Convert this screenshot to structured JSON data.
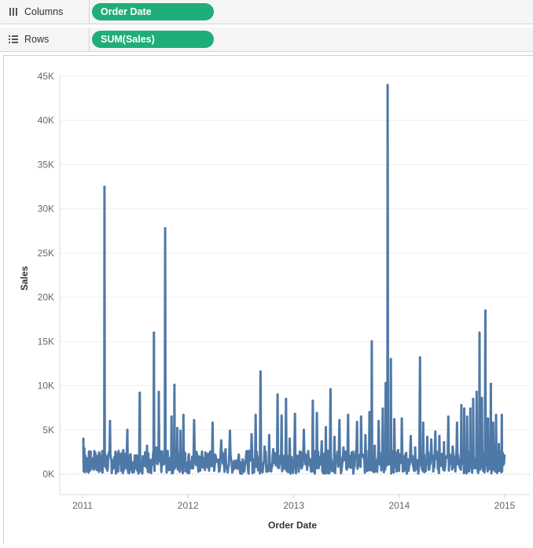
{
  "shelves": {
    "columns": {
      "label": "Columns",
      "pill": "Order Date",
      "icon": "columns-icon"
    },
    "rows": {
      "label": "Rows",
      "pill": "SUM(Sales)",
      "icon": "rows-list-icon"
    }
  },
  "colors": {
    "pill": "#1fae7a",
    "series": "#4e79a7",
    "grid": "#efefef",
    "axis_text": "#666666"
  },
  "chart_data": {
    "type": "line",
    "title": "",
    "xlabel": "Order Date",
    "ylabel": "Sales",
    "x_range": [
      "2011-01-01",
      "2015-01-01"
    ],
    "ylim": [
      0,
      45000
    ],
    "x_ticks": [
      "2011",
      "2012",
      "2013",
      "2014",
      "2015"
    ],
    "y_ticks": [
      "0K",
      "5K",
      "10K",
      "15K",
      "20K",
      "25K",
      "30K",
      "35K",
      "40K",
      "45K"
    ],
    "y_tick_values": [
      0,
      5000,
      10000,
      15000,
      20000,
      25000,
      30000,
      35000,
      40000,
      45000
    ],
    "grid": true,
    "series": [
      {
        "values_approx": "daily sales values, most below 6,000",
        "points": [
          [
            "2011-01-04",
            4000
          ],
          [
            "2011-01-07",
            2900
          ],
          [
            "2011-01-12",
            1800
          ],
          [
            "2011-01-20",
            300
          ],
          [
            "2011-02-01",
            1500
          ],
          [
            "2011-02-14",
            2400
          ],
          [
            "2011-02-26",
            1200
          ],
          [
            "2011-03-03",
            1800
          ],
          [
            "2011-03-10",
            2600
          ],
          [
            "2011-03-18",
            32500
          ],
          [
            "2011-03-25",
            800
          ],
          [
            "2011-04-06",
            6000
          ],
          [
            "2011-04-16",
            1500
          ],
          [
            "2011-04-28",
            2300
          ],
          [
            "2011-05-10",
            1900
          ],
          [
            "2011-05-22",
            2700
          ],
          [
            "2011-06-05",
            5000
          ],
          [
            "2011-06-18",
            1300
          ],
          [
            "2011-07-01",
            2100
          ],
          [
            "2011-07-18",
            9200
          ],
          [
            "2011-07-30",
            1000
          ],
          [
            "2011-08-12",
            3200
          ],
          [
            "2011-08-25",
            1600
          ],
          [
            "2011-09-05",
            16000
          ],
          [
            "2011-09-14",
            3000
          ],
          [
            "2011-09-22",
            9300
          ],
          [
            "2011-10-02",
            2200
          ],
          [
            "2011-10-14",
            27800
          ],
          [
            "2011-10-24",
            1500
          ],
          [
            "2011-11-05",
            6500
          ],
          [
            "2011-11-15",
            10100
          ],
          [
            "2011-11-25",
            5200
          ],
          [
            "2011-12-06",
            4900
          ],
          [
            "2011-12-16",
            6700
          ],
          [
            "2011-12-28",
            1300
          ],
          [
            "2012-01-08",
            1100
          ],
          [
            "2012-01-22",
            6100
          ],
          [
            "2012-02-08",
            2000
          ],
          [
            "2012-02-25",
            1800
          ],
          [
            "2012-03-10",
            2300
          ],
          [
            "2012-03-26",
            5800
          ],
          [
            "2012-04-10",
            1400
          ],
          [
            "2012-04-25",
            3800
          ],
          [
            "2012-05-10",
            2800
          ],
          [
            "2012-05-25",
            4900
          ],
          [
            "2012-06-10",
            1500
          ],
          [
            "2012-06-25",
            2200
          ],
          [
            "2012-07-10",
            1300
          ],
          [
            "2012-07-25",
            2600
          ],
          [
            "2012-08-08",
            4500
          ],
          [
            "2012-08-22",
            6700
          ],
          [
            "2012-09-08",
            11600
          ],
          [
            "2012-09-22",
            3100
          ],
          [
            "2012-10-08",
            4400
          ],
          [
            "2012-10-22",
            2800
          ],
          [
            "2012-11-06",
            9000
          ],
          [
            "2012-11-20",
            6600
          ],
          [
            "2012-12-05",
            8500
          ],
          [
            "2012-12-18",
            4000
          ],
          [
            "2013-01-05",
            6800
          ],
          [
            "2013-01-20",
            1500
          ],
          [
            "2013-02-05",
            5000
          ],
          [
            "2013-02-20",
            2600
          ],
          [
            "2013-03-08",
            8300
          ],
          [
            "2013-03-22",
            6900
          ],
          [
            "2013-04-08",
            3700
          ],
          [
            "2013-04-22",
            5300
          ],
          [
            "2013-05-08",
            9600
          ],
          [
            "2013-05-22",
            4200
          ],
          [
            "2013-06-08",
            6100
          ],
          [
            "2013-06-22",
            3000
          ],
          [
            "2013-07-08",
            6700
          ],
          [
            "2013-07-22",
            2400
          ],
          [
            "2013-08-08",
            5900
          ],
          [
            "2013-08-22",
            6500
          ],
          [
            "2013-09-06",
            4400
          ],
          [
            "2013-09-20",
            7000
          ],
          [
            "2013-09-28",
            15000
          ],
          [
            "2013-10-08",
            3200
          ],
          [
            "2013-10-22",
            6000
          ],
          [
            "2013-11-05",
            7400
          ],
          [
            "2013-11-15",
            10300
          ],
          [
            "2013-11-22",
            44000
          ],
          [
            "2013-12-03",
            13000
          ],
          [
            "2013-12-15",
            6200
          ],
          [
            "2013-12-28",
            2700
          ],
          [
            "2014-01-10",
            6300
          ],
          [
            "2014-01-25",
            2400
          ],
          [
            "2014-02-10",
            4300
          ],
          [
            "2014-02-25",
            3000
          ],
          [
            "2014-03-14",
            13200
          ],
          [
            "2014-03-25",
            5800
          ],
          [
            "2014-04-08",
            4200
          ],
          [
            "2014-04-22",
            3900
          ],
          [
            "2014-05-06",
            4800
          ],
          [
            "2014-05-20",
            4300
          ],
          [
            "2014-06-05",
            3600
          ],
          [
            "2014-06-20",
            6500
          ],
          [
            "2014-07-05",
            3100
          ],
          [
            "2014-07-20",
            5800
          ],
          [
            "2014-08-04",
            7800
          ],
          [
            "2014-08-14",
            7400
          ],
          [
            "2014-08-24",
            6500
          ],
          [
            "2014-09-04",
            7400
          ],
          [
            "2014-09-14",
            8500
          ],
          [
            "2014-09-26",
            9300
          ],
          [
            "2014-10-06",
            16000
          ],
          [
            "2014-10-14",
            8600
          ],
          [
            "2014-10-26",
            18500
          ],
          [
            "2014-11-04",
            6300
          ],
          [
            "2014-11-14",
            10200
          ],
          [
            "2014-11-22",
            5800
          ],
          [
            "2014-12-02",
            6700
          ],
          [
            "2014-12-12",
            3400
          ],
          [
            "2014-12-22",
            6700
          ],
          [
            "2014-12-31",
            2100
          ]
        ]
      }
    ]
  }
}
